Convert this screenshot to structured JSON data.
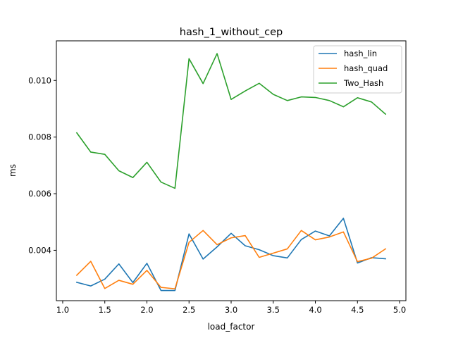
{
  "chart_data": {
    "type": "line",
    "title": "hash_1_without_cep",
    "xlabel": "load_factor",
    "ylabel": "ms",
    "xlim": [
      0.925,
      5.075
    ],
    "ylim": [
      0.00222,
      0.0114
    ],
    "xticks": [
      1.0,
      1.5,
      2.0,
      2.5,
      3.0,
      3.5,
      4.0,
      4.5,
      5.0
    ],
    "xtick_labels": [
      "1.0",
      "1.5",
      "2.0",
      "2.5",
      "3.0",
      "3.5",
      "4.0",
      "4.5",
      "5.0"
    ],
    "yticks": [
      0.004,
      0.006,
      0.008,
      0.01
    ],
    "ytick_labels": [
      "0.004",
      "0.006",
      "0.008",
      "0.010"
    ],
    "grid": false,
    "legend_position": "top-right",
    "x": [
      1.167,
      1.333,
      1.5,
      1.667,
      1.833,
      2.0,
      2.167,
      2.333,
      2.5,
      2.667,
      2.833,
      3.0,
      3.167,
      3.333,
      3.5,
      3.667,
      3.833,
      4.0,
      4.167,
      4.333,
      4.5,
      4.667,
      4.833
    ],
    "series": [
      {
        "name": "hash_lin",
        "color": "#1f77b4",
        "values": [
          0.00287,
          0.00274,
          0.00298,
          0.00352,
          0.00286,
          0.00354,
          0.00258,
          0.00258,
          0.00458,
          0.00369,
          0.00412,
          0.0046,
          0.00416,
          0.00402,
          0.00381,
          0.00373,
          0.00438,
          0.00468,
          0.00451,
          0.00513,
          0.00355,
          0.00374,
          0.0037
        ]
      },
      {
        "name": "hash_quad",
        "color": "#ff7f0e",
        "values": [
          0.00312,
          0.00361,
          0.00265,
          0.00294,
          0.0028,
          0.00329,
          0.00269,
          0.00264,
          0.00428,
          0.0047,
          0.0042,
          0.00444,
          0.00452,
          0.00375,
          0.0039,
          0.00405,
          0.0047,
          0.00437,
          0.00447,
          0.00465,
          0.0036,
          0.00372,
          0.00405
        ]
      },
      {
        "name": "Two_Hash",
        "color": "#2ca02c",
        "values": [
          0.00815,
          0.00747,
          0.00739,
          0.00681,
          0.00657,
          0.00711,
          0.00641,
          0.00619,
          0.01077,
          0.00989,
          0.01095,
          0.00933,
          0.00963,
          0.0099,
          0.00951,
          0.00929,
          0.00942,
          0.0094,
          0.00929,
          0.00907,
          0.00939,
          0.00924,
          0.00881
        ]
      }
    ]
  }
}
